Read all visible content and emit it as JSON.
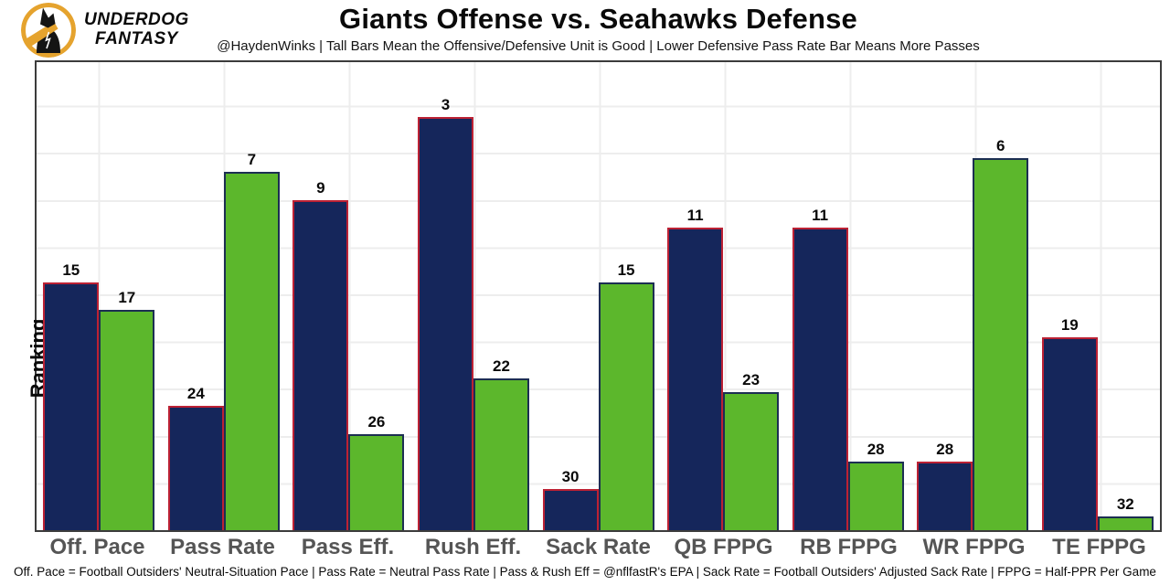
{
  "brand": {
    "line1": "UNDERDOG",
    "line2": "FANTASY",
    "gold": "#E5A32E"
  },
  "header": {
    "title": "Giants Offense vs. Seahawks Defense",
    "subtitle": "@HaydenWinks | Tall Bars Mean the Offensive/Defensive Unit is Good | Lower Defensive Pass Rate Bar Means More Passes"
  },
  "footer": {
    "note": "Off. Pace = Football Outsiders' Neutral-Situation Pace | Pass Rate = Neutral Pass Rate | Pass & Rush Eff = @nflfastR's EPA | Sack Rate = Football Outsiders' Adjusted Sack Rate | FPPG = Half-PPR Per Game"
  },
  "chart_data": {
    "type": "bar",
    "title": "Giants Offense vs. Seahawks Defense",
    "ylabel": "Ranking",
    "xlabel": "",
    "categories": [
      "Off. Pace",
      "Pass Rate",
      "Pass Eff.",
      "Rush Eff.",
      "Sack Rate",
      "QB FPPG",
      "RB FPPG",
      "WR FPPG",
      "TE FPPG"
    ],
    "series": [
      {
        "name": "Giants Offense",
        "fill": "#15265B",
        "border": "#BC2134",
        "values": [
          15,
          24,
          9,
          3,
          30,
          11,
          11,
          28,
          19
        ]
      },
      {
        "name": "Seahawks Defense",
        "fill": "#5CB72C",
        "border": "#1C2E52",
        "values": [
          17,
          7,
          26,
          22,
          15,
          23,
          28,
          6,
          32
        ]
      }
    ],
    "value_mapping": "values are NFL ranks 1-32; bar height encodes 33 minus rank so lower (better) rank = taller bar",
    "ylim": [
      0,
      34
    ],
    "grid": true,
    "legend_position": "none"
  }
}
